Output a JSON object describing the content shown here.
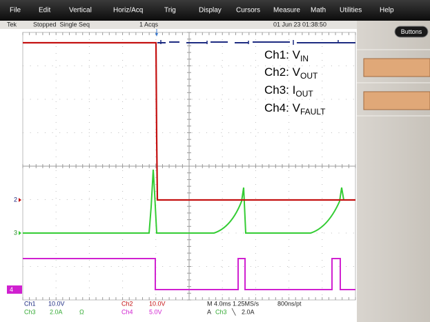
{
  "menu": {
    "items": [
      "File",
      "Edit",
      "Vertical",
      "Horiz/Acq",
      "Trig",
      "Display",
      "Cursors",
      "Measure",
      "Math",
      "Utilities",
      "Help"
    ]
  },
  "status": {
    "brand": "Tek",
    "state": "Stopped  Single Seq",
    "acquisitions": "1 Acqs",
    "datetime": "01 Jun 23 01:38:50"
  },
  "side_panel": {
    "button": "Buttons"
  },
  "legend": [
    {
      "label": "Ch1: V",
      "sub": "IN"
    },
    {
      "label": "Ch2: V",
      "sub": "OUT"
    },
    {
      "label": "Ch3: I",
      "sub": "OUT"
    },
    {
      "label": "Ch4: V",
      "sub": "FAULT"
    }
  ],
  "channel_markers": [
    "2",
    "3",
    "4"
  ],
  "readout": {
    "row1": [
      "Ch1",
      "10.0V",
      "Ch2",
      "10.0V",
      "M 4.0ms 1.25MS/s",
      "800ns/pt"
    ],
    "row2": [
      "Ch3",
      "2.0A",
      "Ω",
      "Ch4",
      "5.0V",
      "A",
      "Ch3",
      "╲",
      "2.0A"
    ]
  }
}
